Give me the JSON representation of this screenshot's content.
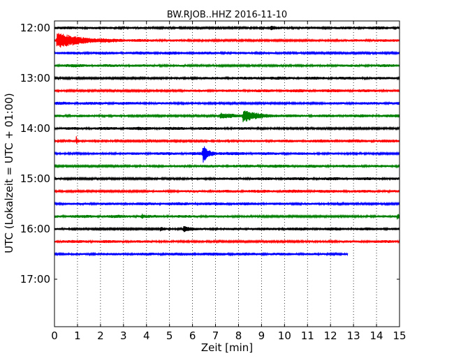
{
  "chart_data": {
    "type": "line",
    "title": "BW.RJOB..HHZ 2016-11-10",
    "xlabel": "Zeit  [min]",
    "ylabel": "UTC (Lokalzeit = UTC + 01:00)",
    "xlim": [
      0,
      15
    ],
    "x_ticks": [
      "0",
      "1",
      "2",
      "3",
      "4",
      "5",
      "6",
      "7",
      "8",
      "9",
      "10",
      "11",
      "12",
      "13",
      "14",
      "15"
    ],
    "y_ticks": [
      "12:00",
      "13:00",
      "14:00",
      "15:00",
      "16:00",
      "17:00"
    ],
    "y_tick_rows": [
      0,
      4,
      8,
      12,
      16,
      20
    ],
    "y_rows_total": 24.5,
    "grid": "vertical dotted",
    "row_interval_min": 15,
    "colors": [
      "#000000",
      "#ff0000",
      "#0000ff",
      "#008000"
    ],
    "series": [
      {
        "start": "12:00",
        "color": "#000000",
        "end_min": 15,
        "events": [
          {
            "t": 9.4,
            "amp": 1.2,
            "dur": 0.4
          }
        ]
      },
      {
        "start": "12:15",
        "color": "#ff0000",
        "end_min": 15,
        "events": [
          {
            "t": 0.1,
            "amp": 4.5,
            "dur": 2.0
          }
        ]
      },
      {
        "start": "12:30",
        "color": "#0000ff",
        "end_min": 15,
        "events": []
      },
      {
        "start": "12:45",
        "color": "#008000",
        "end_min": 15,
        "events": []
      },
      {
        "start": "13:00",
        "color": "#000000",
        "end_min": 15,
        "events": []
      },
      {
        "start": "13:15",
        "color": "#ff0000",
        "end_min": 15,
        "events": []
      },
      {
        "start": "13:30",
        "color": "#0000ff",
        "end_min": 15,
        "events": []
      },
      {
        "start": "13:45",
        "color": "#008000",
        "end_min": 15,
        "events": [
          {
            "t": 7.2,
            "amp": 1.6,
            "dur": 1.5
          },
          {
            "t": 8.2,
            "amp": 3.5,
            "dur": 1.2
          }
        ]
      },
      {
        "start": "14:00",
        "color": "#000000",
        "end_min": 15,
        "events": []
      },
      {
        "start": "14:15",
        "color": "#ff0000",
        "end_min": 15,
        "events": [
          {
            "t": 0.95,
            "amp": 2.2,
            "dur": 0.1
          }
        ]
      },
      {
        "start": "14:30",
        "color": "#0000ff",
        "end_min": 15,
        "events": [
          {
            "t": 6.45,
            "amp": 5.0,
            "dur": 0.5
          }
        ]
      },
      {
        "start": "14:45",
        "color": "#008000",
        "end_min": 15,
        "events": []
      },
      {
        "start": "15:00",
        "color": "#000000",
        "end_min": 15,
        "events": []
      },
      {
        "start": "15:15",
        "color": "#ff0000",
        "end_min": 15,
        "events": []
      },
      {
        "start": "15:30",
        "color": "#0000ff",
        "end_min": 15,
        "events": []
      },
      {
        "start": "15:45",
        "color": "#008000",
        "end_min": 15,
        "events": [
          {
            "t": 3.8,
            "amp": 1.2,
            "dur": 0.1
          },
          {
            "t": 14.9,
            "amp": 1.4,
            "dur": 0.2
          }
        ]
      },
      {
        "start": "16:00",
        "color": "#000000",
        "end_min": 15,
        "events": [
          {
            "t": 4.6,
            "amp": 0.9,
            "dur": 0.4
          },
          {
            "t": 5.6,
            "amp": 1.6,
            "dur": 0.6
          }
        ]
      },
      {
        "start": "16:15",
        "color": "#ff0000",
        "end_min": 15,
        "events": []
      },
      {
        "start": "16:30",
        "color": "#0000ff",
        "end_min": 12.75,
        "events": []
      }
    ]
  }
}
